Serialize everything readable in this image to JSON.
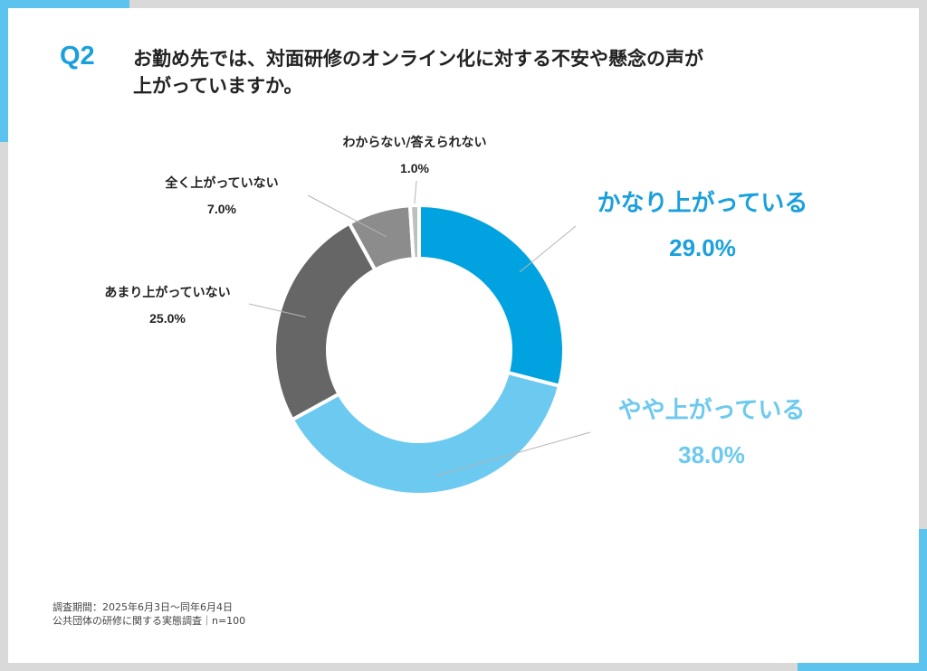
{
  "header": {
    "question_number": "Q2",
    "question_line1": "お勤め先では、対面研修のオンライン化に対する不安や懸念の声が",
    "question_line2": "上がっていますか。"
  },
  "chart_data": {
    "type": "pie",
    "donut": true,
    "start_angle_deg": 0,
    "direction": "clockwise",
    "categories": [
      "かなり上がっている",
      "やや上がっている",
      "あまり上がっていない",
      "全く上がっていない",
      "わからない/答えられない"
    ],
    "values": [
      29.0,
      38.0,
      25.0,
      7.0,
      1.0
    ],
    "value_labels": [
      "29.0%",
      "38.0%",
      "25.0%",
      "7.0%",
      "1.0%"
    ],
    "colors": [
      "#00a3e0",
      "#6cc9f0",
      "#666666",
      "#8c8c8c",
      "#bfbfbf"
    ],
    "label_colors": [
      "#1aa0dc",
      "#6cc9f0",
      "#222222",
      "#222222",
      "#222222"
    ],
    "label_sizes": [
      "large",
      "large",
      "small",
      "small",
      "small"
    ]
  },
  "footnote": {
    "line1": "調査期間：2025年6月3日～同年6月4日",
    "line2": "公共団体の研修に関する実態調査｜n=100"
  }
}
